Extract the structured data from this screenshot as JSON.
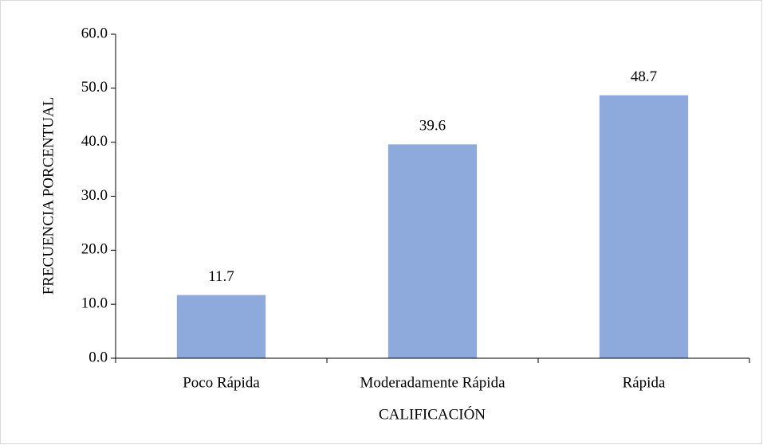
{
  "chart_data": {
    "type": "bar",
    "categories": [
      "Poco Rápida",
      "Moderadamente Rápida",
      "Rápida"
    ],
    "values": [
      11.7,
      39.6,
      48.7
    ],
    "color": "#8eaadc",
    "xlabel": "CALIFICACIÓN",
    "ylabel": "FRECUENCIA PORCENTUAL",
    "ylim": [
      0,
      60
    ],
    "yticks": [
      {
        "value": 0,
        "label": "0.0"
      },
      {
        "value": 10,
        "label": "10.0"
      },
      {
        "value": 20,
        "label": "20.0"
      },
      {
        "value": 30,
        "label": "30.0"
      },
      {
        "value": 40,
        "label": "40.0"
      },
      {
        "value": 50,
        "label": "50.0"
      },
      {
        "value": 60,
        "label": "60.0"
      }
    ],
    "grid": false
  }
}
